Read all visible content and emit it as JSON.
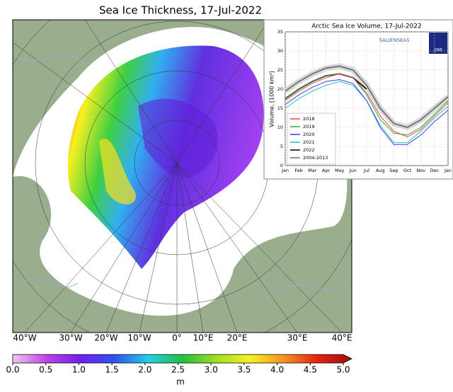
{
  "map": {
    "title": "Sea Ice Thickness, 17-Jul-2022",
    "longitude_labels": [
      "40°W",
      "30°W",
      "20°W",
      "10°W",
      "0°",
      "10°E",
      "20°E",
      "30°E",
      "40°E"
    ]
  },
  "colorbar": {
    "lim": [
      0,
      5
    ],
    "ticks": [
      {
        "value": 0,
        "label": "0.0"
      },
      {
        "value": 0.5,
        "label": "0.5"
      },
      {
        "value": 1,
        "label": "1.0"
      },
      {
        "value": 1.5,
        "label": "1.5"
      },
      {
        "value": 2,
        "label": "2.0"
      },
      {
        "value": 2.5,
        "label": "2.5"
      },
      {
        "value": 3,
        "label": "3.0"
      },
      {
        "value": 3.5,
        "label": "3.5"
      },
      {
        "value": 4,
        "label": "4.0"
      },
      {
        "value": 4.5,
        "label": "4.5"
      },
      {
        "value": 5,
        "label": "5.0"
      }
    ],
    "unit": "m"
  },
  "chart_data": {
    "type": "line",
    "title": "Arctic Sea Ice Volume, 17-Jul-2022",
    "y_label": "Volume, [1000 km³]",
    "logo": "SALIENSEAS",
    "logo_2": "DMI",
    "categories": [
      "Jan",
      "Feb",
      "Mar",
      "Apr",
      "May",
      "Jun",
      "Jul",
      "Aug",
      "Sep",
      "Oct",
      "Nov",
      "Dec",
      "Jan"
    ],
    "ylim": [
      0,
      35
    ],
    "yticks": [
      0,
      5,
      10,
      15,
      20,
      25,
      30,
      35
    ],
    "grid": true,
    "series": [
      {
        "name": "2018",
        "color": "#e8483c",
        "values": [
          17,
          19.5,
          21.5,
          23,
          24,
          23,
          19,
          13,
          9,
          7.5,
          9.5,
          13,
          16.5
        ]
      },
      {
        "name": "2019",
        "color": "#3aa23a",
        "values": [
          17.5,
          20,
          22,
          23.5,
          24,
          23,
          18.5,
          12,
          8.5,
          8,
          10,
          13.5,
          17
        ]
      },
      {
        "name": "2020",
        "color": "#3c3ce8",
        "values": [
          16,
          18.5,
          20.5,
          22,
          22.5,
          21.5,
          17,
          10,
          5.5,
          5.5,
          8,
          11.5,
          14.5
        ]
      },
      {
        "name": "2021",
        "color": "#22c0c8",
        "values": [
          15,
          17.5,
          19.5,
          21,
          22,
          21,
          17,
          10.5,
          6,
          6,
          9,
          12.5,
          15.5
        ]
      },
      {
        "name": "2022",
        "color": "#000000",
        "values": [
          17.5,
          20,
          22,
          23.5,
          24,
          23,
          20,
          null,
          null,
          null,
          null,
          null,
          null
        ]
      },
      {
        "name": "2004-2013",
        "color": "#707070",
        "values": [
          19.5,
          22,
          24,
          25.5,
          26,
          25,
          21,
          15,
          11,
          10,
          12,
          15,
          18
        ]
      }
    ]
  }
}
